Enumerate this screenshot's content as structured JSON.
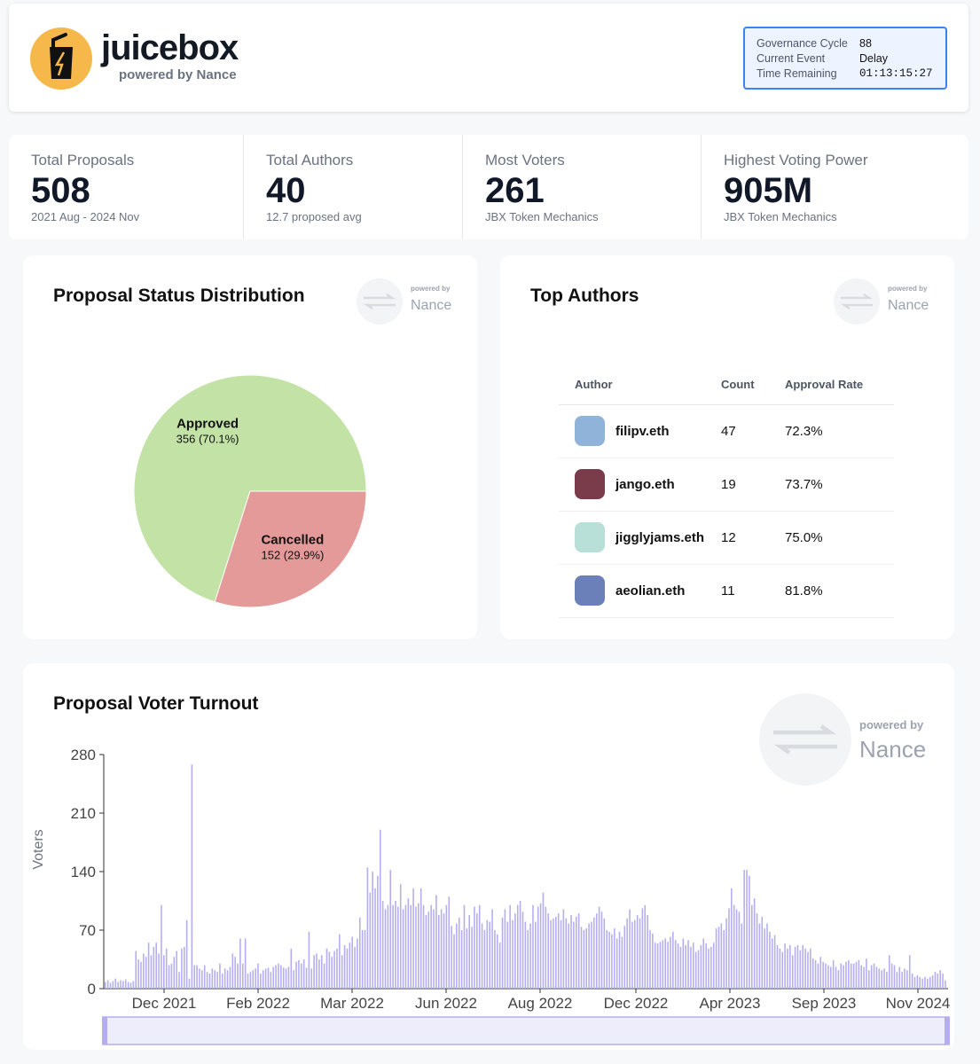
{
  "header": {
    "brand": "juicebox",
    "subtitle": "powered by Nance",
    "governance": [
      {
        "key": "Governance Cycle",
        "value": "88"
      },
      {
        "key": "Current Event",
        "value": "Delay"
      },
      {
        "key": "Time Remaining",
        "value": "01:13:15:27"
      }
    ]
  },
  "stats": [
    {
      "label": "Total Proposals",
      "value": "508",
      "desc": "2021 Aug - 2024 Nov"
    },
    {
      "label": "Total Authors",
      "value": "40",
      "desc": "12.7 proposed avg"
    },
    {
      "label": "Most Voters",
      "value": "261",
      "desc": "JBX Token Mechanics"
    },
    {
      "label": "Highest Voting Power",
      "value": "905M",
      "desc": "JBX Token Mechanics"
    }
  ],
  "badge": {
    "powered": "powered by",
    "name": "Nance"
  },
  "status_card": {
    "title": "Proposal Status Distribution"
  },
  "authors_card": {
    "title": "Top Authors",
    "columns": [
      "Author",
      "Count",
      "Approval Rate"
    ],
    "rows": [
      {
        "name": "filipv.eth",
        "count": "47",
        "rate": "72.3%",
        "avatar_color": "#8fb3d9"
      },
      {
        "name": "jango.eth",
        "count": "19",
        "rate": "73.7%",
        "avatar_color": "#7a3b4a"
      },
      {
        "name": "jigglyjams.eth",
        "count": "12",
        "rate": "75.0%",
        "avatar_color": "#b8e0d8"
      },
      {
        "name": "aeolian.eth",
        "count": "11",
        "rate": "81.8%",
        "avatar_color": "#6b7fb8"
      }
    ]
  },
  "turnout_card": {
    "title": "Proposal Voter Turnout"
  },
  "chart_data": [
    {
      "type": "pie",
      "slices": [
        {
          "label": "Approved",
          "value": 356,
          "text": "356 (70.1%)",
          "color": "#c3e2a6"
        },
        {
          "label": "Cancelled",
          "value": 152,
          "text": "152 (29.9%)",
          "color": "#e39a99"
        }
      ]
    },
    {
      "type": "bar",
      "ylabel": "Voters",
      "ylim": [
        0,
        280
      ],
      "yticks": [
        "0",
        "70",
        "140",
        "210",
        "280"
      ],
      "xticks": [
        "Dec 2021",
        "Feb 2022",
        "Mar 2022",
        "Jun 2022",
        "Aug 2022",
        "Dec 2022",
        "Apr 2023",
        "Sep 2023",
        "Nov 2024"
      ],
      "bar_color": "#b4aef0",
      "values": [
        8,
        10,
        7,
        9,
        12,
        8,
        10,
        9,
        11,
        8,
        7,
        9,
        45,
        35,
        32,
        42,
        38,
        55,
        40,
        50,
        55,
        42,
        100,
        40,
        48,
        28,
        30,
        38,
        45,
        20,
        48,
        50,
        82,
        12,
        268,
        28,
        28,
        24,
        22,
        28,
        20,
        18,
        24,
        22,
        20,
        30,
        18,
        24,
        22,
        26,
        42,
        38,
        30,
        60,
        30,
        60,
        18,
        20,
        22,
        24,
        30,
        18,
        22,
        24,
        25,
        20,
        26,
        28,
        30,
        28,
        25,
        24,
        26,
        48,
        22,
        32,
        34,
        30,
        35,
        25,
        68,
        24,
        40,
        42,
        35,
        40,
        30,
        48,
        44,
        38,
        45,
        48,
        65,
        40,
        52,
        48,
        55,
        62,
        50,
        60,
        85,
        70,
        70,
        145,
        115,
        140,
        120,
        135,
        190,
        105,
        95,
        100,
        142,
        100,
        105,
        98,
        125,
        95,
        100,
        108,
        100,
        120,
        98,
        102,
        120,
        100,
        88,
        92,
        100,
        95,
        112,
        88,
        95,
        90,
        100,
        110,
        75,
        65,
        78,
        85,
        70,
        100,
        72,
        88,
        74,
        98,
        90,
        100,
        78,
        70,
        82,
        80,
        95,
        70,
        65,
        55,
        85,
        95,
        80,
        100,
        82,
        90,
        100,
        105,
        92,
        80,
        70,
        78,
        100,
        80,
        98,
        102,
        115,
        98,
        90,
        82,
        84,
        86,
        90,
        82,
        95,
        84,
        78,
        88,
        80,
        86,
        90,
        74,
        70,
        72,
        78,
        80,
        85,
        90,
        98,
        92,
        84,
        70,
        68,
        65,
        72,
        60,
        68,
        62,
        75,
        84,
        95,
        80,
        82,
        88,
        84,
        96,
        100,
        88,
        70,
        66,
        55,
        54,
        56,
        58,
        60,
        56,
        62,
        68,
        58,
        54,
        50,
        60,
        52,
        58,
        50,
        55,
        44,
        46,
        52,
        60,
        54,
        48,
        50,
        55,
        72,
        74,
        78,
        70,
        84,
        96,
        120,
        100,
        95,
        92,
        78,
        142,
        142,
        135,
        100,
        108,
        90,
        78,
        86,
        72,
        78,
        68,
        60,
        64,
        52,
        48,
        44,
        54,
        48,
        52,
        40,
        50,
        52,
        46,
        52,
        48,
        44,
        48,
        36,
        34,
        30,
        38,
        32,
        30,
        28,
        26,
        34,
        26,
        22,
        30,
        28,
        32,
        34,
        30,
        30,
        32,
        34,
        28,
        26,
        36,
        22,
        28,
        30,
        26,
        24,
        22,
        24,
        20,
        40,
        30,
        28,
        20,
        26,
        20,
        24,
        22,
        40,
        18,
        14,
        16,
        14,
        12,
        14,
        12,
        14,
        16,
        20,
        18,
        22,
        18,
        10
      ]
    }
  ]
}
